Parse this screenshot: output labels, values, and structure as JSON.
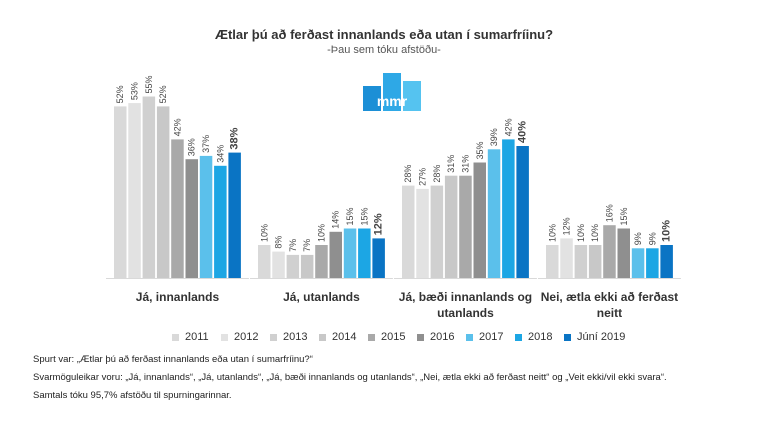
{
  "chart_data": {
    "type": "bar",
    "title": "Ætlar þú að ferðast innanlands eða utan í sumarfríinu?",
    "subtitle": "-Þau sem tóku afstöðu-",
    "categories": [
      [
        "Já, innanlands"
      ],
      [
        "Já, utanlands"
      ],
      [
        "Já, bæði innanlands og",
        "utanlands"
      ],
      [
        "Nei, ætla ekki að ferðast",
        "neitt"
      ]
    ],
    "series": [
      {
        "name": "2011",
        "color": "#d9d9d9",
        "values": [
          52,
          10,
          28,
          10
        ]
      },
      {
        "name": "2012",
        "color": "#e2e2e2",
        "values": [
          53,
          8,
          27,
          12
        ]
      },
      {
        "name": "2013",
        "color": "#d0d0d0",
        "values": [
          55,
          7,
          28,
          10
        ]
      },
      {
        "name": "2014",
        "color": "#c8c8c8",
        "values": [
          52,
          7,
          31,
          10
        ]
      },
      {
        "name": "2015",
        "color": "#a9a9a9",
        "values": [
          42,
          10,
          31,
          16
        ]
      },
      {
        "name": "2016",
        "color": "#8f8f8f",
        "values": [
          36,
          14,
          35,
          15
        ]
      },
      {
        "name": "2017",
        "color": "#5bc0eb",
        "values": [
          37,
          15,
          39,
          9
        ]
      },
      {
        "name": "2018",
        "color": "#1ca6e4",
        "values": [
          34,
          15,
          42,
          9
        ]
      },
      {
        "name": "Júní 2019",
        "color": "#0a74c4",
        "values": [
          38,
          12,
          40,
          10
        ]
      }
    ],
    "ylim": [
      0,
      60
    ],
    "grid": false,
    "legend": "bottom"
  },
  "notes": [
    "Spurt var: „Ætlar þú að ferðast innanlands eða utan í sumarfríinu?“",
    "Svarmöguleikar voru: „Já, innanlands“, „Já, utanlands“, „Já, bæði innanlands og utanlands“, „Nei, ætla ekki að ferðast neitt“ og „Veit ekki/vil ekki svara“.",
    "Samtals tóku 95,7% afstöðu til spurningarinnar."
  ],
  "logo": {
    "text": "mmr",
    "colors": [
      "#1c8fd6",
      "#2ea8e6",
      "#55c3f0"
    ]
  }
}
